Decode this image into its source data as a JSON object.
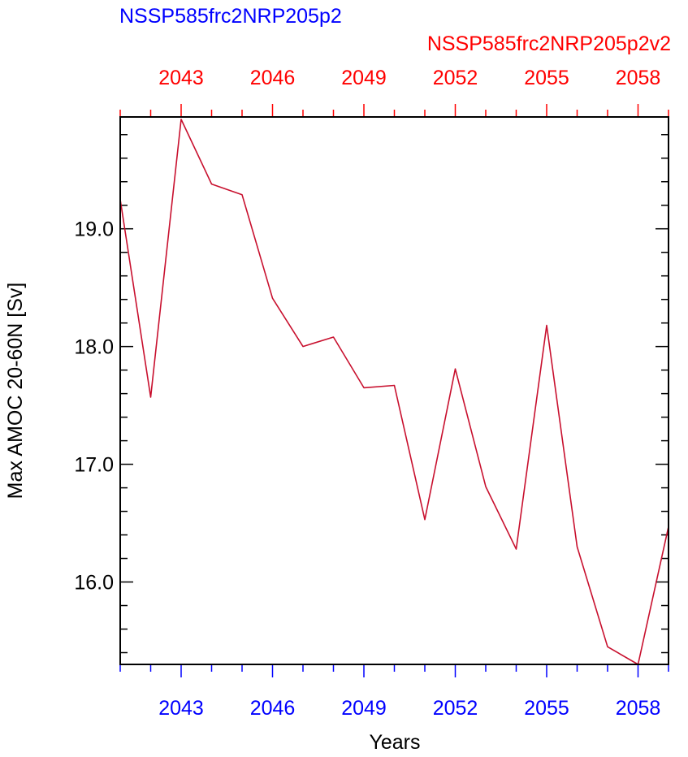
{
  "chart_data": {
    "type": "line",
    "title_left": "NSSP585frc2NRP205p2",
    "title_right": "NSSP585frc2NRP205p2v2",
    "xlabel": "Years",
    "ylabel": "Max AMOC 20-60N [Sv]",
    "xlim": [
      2041,
      2059
    ],
    "ylim": [
      15.3,
      19.95
    ],
    "x_major_ticks": [
      2043,
      2046,
      2049,
      2052,
      2055,
      2058
    ],
    "x_tick_labels": [
      "2043",
      "2046",
      "2049",
      "2052",
      "2055",
      "2058"
    ],
    "y_major_ticks": [
      16,
      17,
      18,
      19
    ],
    "y_tick_labels": [
      "16.0",
      "17.0",
      "18.0",
      "19.0"
    ],
    "y_minor_step": 0.2,
    "grid": false,
    "colors": {
      "bottom_axis": "#0000ff",
      "top_axis": "#ff0000",
      "series": "#c8102e",
      "frame": "#000000"
    },
    "series": [
      {
        "x": [
          2041,
          2042,
          2043,
          2044,
          2045,
          2046,
          2047,
          2048,
          2049,
          2050,
          2051,
          2052,
          2053,
          2054,
          2055,
          2056,
          2057,
          2058,
          2059
        ],
        "values": [
          19.25,
          17.57,
          19.93,
          19.38,
          19.29,
          18.41,
          18.0,
          18.08,
          17.65,
          17.67,
          16.53,
          17.81,
          16.81,
          16.28,
          18.18,
          16.3,
          15.45,
          15.3,
          16.47
        ]
      }
    ]
  }
}
